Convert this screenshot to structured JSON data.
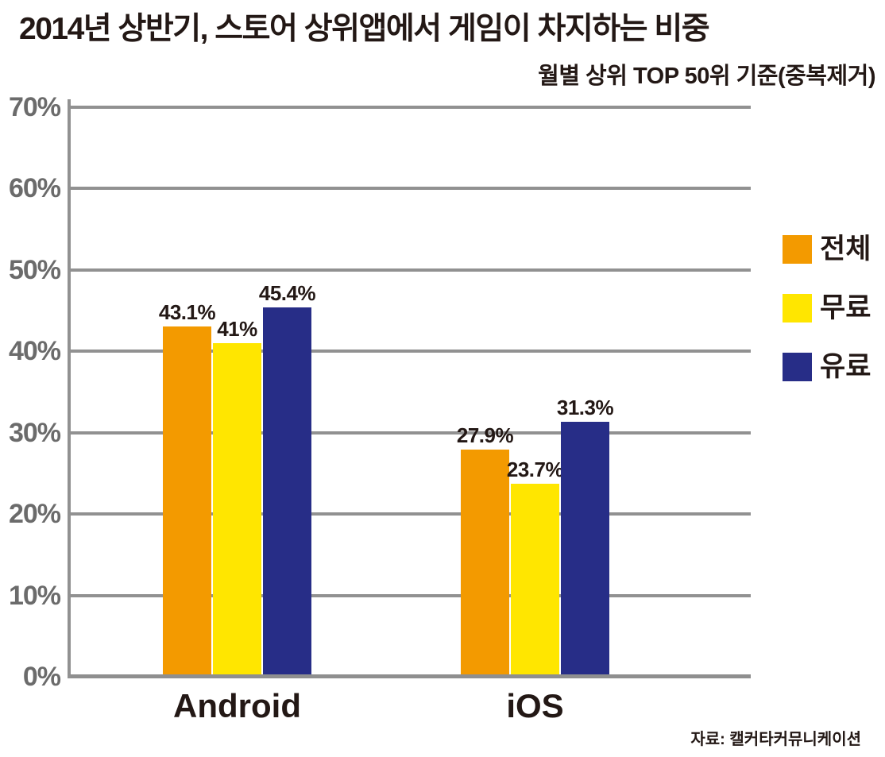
{
  "title": "2014년 상반기, 스토어 상위앱에서 게임이 차지하는 비중",
  "subtitle": "월별 상위 TOP 50위 기준(중복제거)",
  "source": "자료: 캘커타커뮤니케이션",
  "colors": {
    "grid": "#919191",
    "axis": "#919191",
    "tick_label": "#6b6b6b",
    "text": "#231815",
    "series_orange": "#F39A00",
    "series_yellow": "#FFE600",
    "series_navy": "#272D87"
  },
  "chart_data": {
    "type": "bar",
    "categories": [
      "Android",
      "iOS"
    ],
    "series": [
      {
        "name": "전체",
        "color": "#F39A00",
        "values": [
          43.1,
          27.9
        ],
        "data_labels": [
          "43.1%",
          "27.9%"
        ]
      },
      {
        "name": "무료",
        "color": "#FFE600",
        "values": [
          41,
          23.7
        ],
        "data_labels": [
          "41%",
          "23.7%"
        ]
      },
      {
        "name": "유료",
        "color": "#272D87",
        "values": [
          45.4,
          31.3
        ],
        "data_labels": [
          "45.4%",
          "31.3%"
        ]
      }
    ],
    "title": "2014년 상반기, 스토어 상위앱에서 게임이 차지하는 비중",
    "subtitle": "월별 상위 TOP 50위 기준(중복제거)",
    "xlabel": "",
    "ylabel": "",
    "ylim": [
      0,
      70
    ],
    "yticks": [
      {
        "label": "0%",
        "value": 0
      },
      {
        "label": "10%",
        "value": 10
      },
      {
        "label": "20%",
        "value": 20
      },
      {
        "label": "30%",
        "value": 30
      },
      {
        "label": "40%",
        "value": 40
      },
      {
        "label": "50%",
        "value": 50
      },
      {
        "label": "60%",
        "value": 60
      },
      {
        "label": "70%",
        "value": 70
      }
    ],
    "grid": true,
    "legend_position": "right",
    "legend": [
      "전체",
      "무료",
      "유료"
    ]
  }
}
